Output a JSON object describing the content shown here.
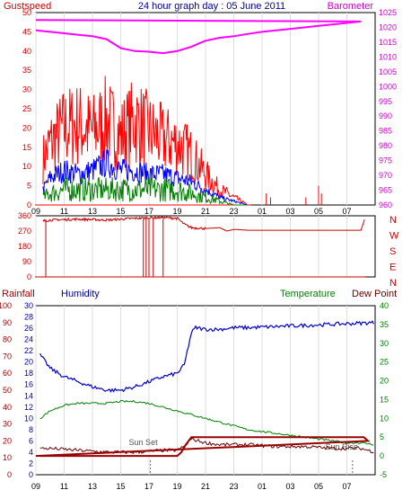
{
  "title": "24 hour graph day : 05 June 2011",
  "colors": {
    "gust": "#ff0000",
    "wind": "#0000ff",
    "avg": "#008000",
    "baro": "#ff00ff",
    "dir": "#cc0000",
    "humidity": "#0000cc",
    "temp": "#008000",
    "dew": "#660000",
    "rain": "#990000",
    "axis": "#000000",
    "grid": "#dddddd"
  },
  "chart_data": [
    {
      "type": "line",
      "labels": {
        "left": "Gustspeed",
        "right": "Barometer"
      },
      "x_ticks": [
        "11",
        "13",
        "15",
        "17",
        "19",
        "21",
        "23",
        "01",
        "03",
        "05",
        "07",
        "09"
      ],
      "y_left": {
        "range": [
          0,
          50
        ],
        "ticks": [
          0,
          5,
          10,
          15,
          20,
          25,
          30,
          35,
          40,
          45,
          50
        ]
      },
      "y_right": {
        "range": [
          960,
          1025
        ],
        "ticks": [
          960,
          965,
          970,
          975,
          980,
          985,
          990,
          995,
          1000,
          1005,
          1010,
          1015,
          1020,
          1025
        ]
      },
      "series": [
        {
          "hours": [
            9.0,
            11,
            12,
            13,
            14,
            15,
            15.5,
            16,
            17,
            17.5,
            18,
            19,
            20,
            20.5,
            21,
            22,
            23,
            0,
            1,
            3,
            5,
            7,
            8,
            9.0
          ],
          "values": [
            1019,
            1018,
            1017.5,
            1017,
            1016,
            1013,
            1012.5,
            1012,
            1011.8,
            1011.5,
            1011.3,
            1012,
            1013.5,
            1014.5,
            1015.5,
            1016.5,
            1017,
            1017.8,
            1018.5,
            1019.5,
            1020.5,
            1021.5,
            1022,
            1022.5
          ]
        },
        {
          "hours": [
            9.5,
            10,
            11,
            12,
            13,
            14,
            15,
            16,
            17,
            18,
            19,
            20,
            21,
            22,
            23,
            0
          ],
          "values": [
            12,
            16,
            20,
            21,
            19,
            22,
            18,
            22,
            19,
            17,
            16,
            13,
            8,
            4,
            2,
            0
          ]
        },
        {
          "hours": [
            9.5,
            10,
            11,
            12,
            13,
            14,
            15,
            16,
            17,
            18,
            19,
            20,
            21,
            22,
            23,
            0
          ],
          "values": [
            4,
            7,
            9,
            8,
            9,
            11,
            9,
            9,
            8,
            8,
            7,
            6,
            4,
            2,
            1,
            0
          ]
        },
        {
          "hours": [
            9.5,
            10,
            11,
            12,
            13,
            14,
            15,
            16,
            17,
            18,
            19,
            20,
            21,
            22,
            23,
            0
          ],
          "values": [
            2,
            3,
            4,
            4,
            4,
            4,
            4,
            4,
            4,
            4,
            4,
            3,
            2,
            1,
            0,
            0
          ]
        }
      ]
    },
    {
      "type": "line",
      "labels": {
        "right_compass": [
          "N",
          "W",
          "S",
          "E",
          "N"
        ]
      },
      "y_left": {
        "range": [
          0,
          360
        ],
        "ticks": [
          0,
          90,
          180,
          270,
          360
        ]
      },
      "series": [
        {
          "hours": [
            9.5,
            10,
            12,
            14,
            16,
            18,
            19,
            19.5,
            20,
            21,
            22,
            22.5,
            23,
            0,
            2,
            4,
            6,
            8,
            8.3
          ],
          "values": [
            330,
            335,
            340,
            335,
            345,
            350,
            345,
            310,
            290,
            285,
            290,
            270,
            280,
            275,
            275,
            275,
            275,
            275,
            350
          ]
        }
      ]
    },
    {
      "type": "line",
      "labels": {
        "rainfall": "Rainfall",
        "humidity": "Humidity",
        "temperature": "Temperature",
        "dew_point": "Dew Point",
        "sun_set": "Sun Set",
        "sun_rise": "Sun Rise"
      },
      "y_rain": {
        "range": [
          0,
          100
        ],
        "ticks": [
          0,
          10,
          20,
          30,
          40,
          50,
          60,
          70,
          80,
          90,
          100
        ]
      },
      "y_hum": {
        "range": [
          0,
          30
        ],
        "ticks": [
          0,
          2,
          4,
          6,
          8,
          10,
          12,
          14,
          16,
          18,
          20,
          22,
          24,
          26,
          28,
          30
        ]
      },
      "y_temp": {
        "range": [
          -5,
          40
        ],
        "ticks": [
          -5,
          0,
          5,
          10,
          15,
          20,
          25,
          30,
          35,
          40
        ]
      },
      "series": [
        {
          "hours": [
            9.3,
            10,
            11,
            12,
            13,
            14,
            15,
            16,
            17,
            18,
            19,
            19.5,
            20,
            20.3,
            21,
            22,
            23,
            0,
            3,
            6,
            9.0
          ],
          "values": [
            71,
            63,
            58,
            55,
            52,
            50,
            50,
            52,
            55,
            58,
            60,
            65,
            84,
            87,
            86,
            86,
            87,
            87,
            88,
            89,
            90
          ]
        },
        {
          "hours": [
            9.3,
            10,
            11,
            12,
            13,
            14,
            15,
            16,
            17,
            18,
            19,
            20,
            21,
            22,
            23,
            0,
            2,
            4,
            6,
            7,
            8,
            9.0
          ],
          "values": [
            10,
            12,
            13.5,
            14,
            14,
            14,
            14.5,
            14.5,
            14,
            13,
            12,
            11,
            10,
            9,
            8,
            7,
            6,
            5,
            4,
            3.5,
            3.5,
            3
          ]
        },
        {
          "hours": [
            9.3,
            10,
            12,
            14,
            16,
            18,
            19,
            19.5,
            20,
            21,
            22,
            23,
            0,
            2,
            4,
            6,
            8,
            9.0
          ],
          "values": [
            2,
            2,
            1.5,
            1,
            1,
            1.5,
            1.5,
            2.5,
            4.5,
            3.5,
            3,
            3,
            3,
            2.5,
            2.5,
            2,
            2,
            1
          ]
        },
        {
          "hours": [
            9.3,
            19,
            19.3,
            19.6,
            20,
            21,
            23,
            2,
            5,
            7,
            8.2,
            8.5,
            9.0
          ],
          "values": [
            0,
            0,
            1,
            3,
            5,
            5,
            5,
            5,
            5,
            5,
            5,
            4,
            0
          ]
        }
      ]
    }
  ]
}
